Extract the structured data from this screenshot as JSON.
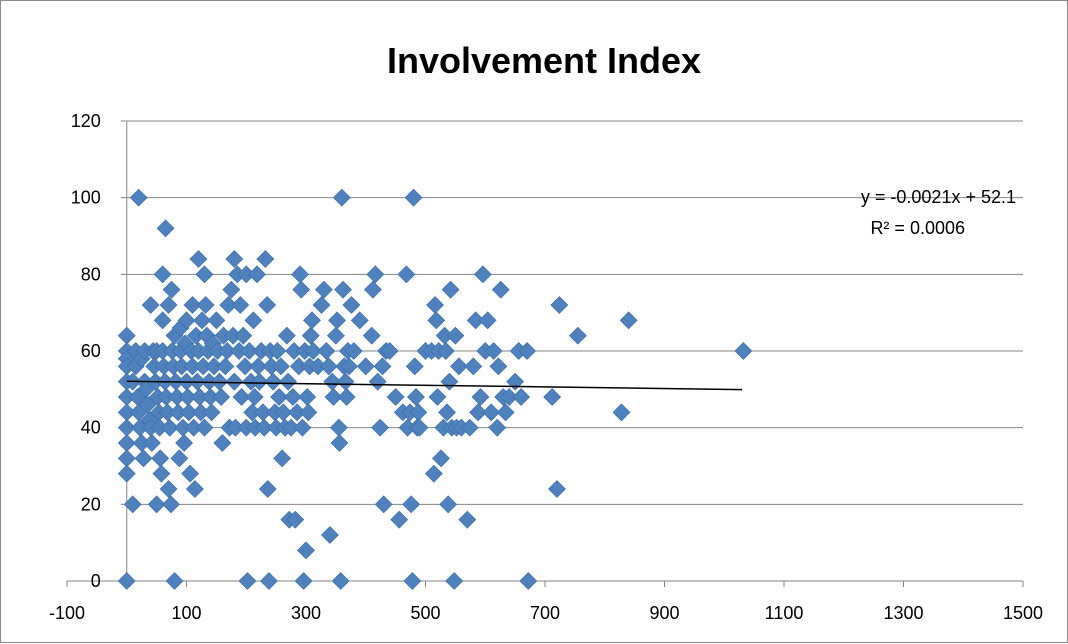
{
  "chart_data": {
    "type": "scatter",
    "title": "Involvement Index",
    "xlabel": "",
    "ylabel": "",
    "xlim": [
      -100,
      1500
    ],
    "ylim": [
      0,
      120
    ],
    "x_ticks": [
      -100,
      100,
      300,
      500,
      700,
      900,
      1100,
      1300,
      1500
    ],
    "y_ticks": [
      0,
      20,
      40,
      60,
      80,
      100,
      120
    ],
    "grid": "horizontal",
    "legend": "none",
    "marker": "diamond",
    "marker_color": "#4F81BD",
    "trendline": {
      "type": "linear",
      "slope": -0.0021,
      "intercept": 52.1,
      "x_range": [
        0,
        1030
      ],
      "equation": "y = -0.0021x + 52.1",
      "r_squared": "R² = 0.0006",
      "color": "#000000"
    },
    "points": [
      [
        0,
        64
      ],
      [
        0,
        60
      ],
      [
        0,
        58
      ],
      [
        0,
        56
      ],
      [
        0,
        52
      ],
      [
        0,
        48
      ],
      [
        0,
        44
      ],
      [
        0,
        40
      ],
      [
        0,
        36
      ],
      [
        0,
        32
      ],
      [
        0,
        28
      ],
      [
        0,
        0
      ],
      [
        10,
        52
      ],
      [
        10,
        20
      ],
      [
        15,
        60
      ],
      [
        15,
        56
      ],
      [
        18,
        48
      ],
      [
        20,
        44
      ],
      [
        20,
        100
      ],
      [
        22,
        40
      ],
      [
        25,
        58
      ],
      [
        25,
        36
      ],
      [
        28,
        32
      ],
      [
        30,
        60
      ],
      [
        30,
        52
      ],
      [
        32,
        50
      ],
      [
        35,
        46
      ],
      [
        38,
        42
      ],
      [
        40,
        72
      ],
      [
        40,
        40
      ],
      [
        42,
        36
      ],
      [
        44,
        60
      ],
      [
        46,
        56
      ],
      [
        48,
        52
      ],
      [
        50,
        20
      ],
      [
        50,
        60
      ],
      [
        52,
        48
      ],
      [
        54,
        44
      ],
      [
        55,
        40
      ],
      [
        56,
        32
      ],
      [
        58,
        28
      ],
      [
        60,
        80
      ],
      [
        60,
        68
      ],
      [
        60,
        60
      ],
      [
        62,
        56
      ],
      [
        64,
        52
      ],
      [
        65,
        92
      ],
      [
        66,
        48
      ],
      [
        68,
        44
      ],
      [
        70,
        72
      ],
      [
        70,
        24
      ],
      [
        72,
        40
      ],
      [
        74,
        20
      ],
      [
        75,
        76
      ],
      [
        76,
        60
      ],
      [
        78,
        56
      ],
      [
        80,
        0
      ],
      [
        80,
        64
      ],
      [
        82,
        52
      ],
      [
        84,
        48
      ],
      [
        86,
        44
      ],
      [
        88,
        32
      ],
      [
        90,
        60
      ],
      [
        90,
        66
      ],
      [
        92,
        56
      ],
      [
        94,
        40
      ],
      [
        96,
        36
      ],
      [
        98,
        62
      ],
      [
        100,
        52
      ],
      [
        100,
        68
      ],
      [
        102,
        48
      ],
      [
        104,
        44
      ],
      [
        106,
        28
      ],
      [
        108,
        60
      ],
      [
        110,
        72
      ],
      [
        110,
        56
      ],
      [
        112,
        40
      ],
      [
        114,
        24
      ],
      [
        116,
        64
      ],
      [
        118,
        52
      ],
      [
        120,
        84
      ],
      [
        120,
        60
      ],
      [
        122,
        48
      ],
      [
        124,
        44
      ],
      [
        126,
        68
      ],
      [
        128,
        56
      ],
      [
        130,
        80
      ],
      [
        130,
        40
      ],
      [
        132,
        72
      ],
      [
        134,
        64
      ],
      [
        136,
        60
      ],
      [
        138,
        52
      ],
      [
        140,
        48
      ],
      [
        142,
        44
      ],
      [
        144,
        62
      ],
      [
        146,
        56
      ],
      [
        150,
        68
      ],
      [
        152,
        60
      ],
      [
        155,
        52
      ],
      [
        158,
        48
      ],
      [
        160,
        36
      ],
      [
        162,
        64
      ],
      [
        165,
        56
      ],
      [
        168,
        60
      ],
      [
        170,
        72
      ],
      [
        172,
        40
      ],
      [
        175,
        76
      ],
      [
        178,
        64
      ],
      [
        180,
        84
      ],
      [
        180,
        52
      ],
      [
        182,
        40
      ],
      [
        185,
        80
      ],
      [
        188,
        60
      ],
      [
        190,
        72
      ],
      [
        192,
        48
      ],
      [
        195,
        64
      ],
      [
        198,
        56
      ],
      [
        200,
        80
      ],
      [
        200,
        40
      ],
      [
        202,
        0
      ],
      [
        205,
        60
      ],
      [
        208,
        52
      ],
      [
        210,
        44
      ],
      [
        212,
        68
      ],
      [
        214,
        48
      ],
      [
        215,
        40
      ],
      [
        218,
        80
      ],
      [
        220,
        56
      ],
      [
        222,
        52
      ],
      [
        225,
        60
      ],
      [
        228,
        44
      ],
      [
        230,
        40
      ],
      [
        232,
        84
      ],
      [
        235,
        72
      ],
      [
        236,
        24
      ],
      [
        238,
        0
      ],
      [
        240,
        60
      ],
      [
        242,
        56
      ],
      [
        245,
        52
      ],
      [
        248,
        44
      ],
      [
        250,
        40
      ],
      [
        252,
        60
      ],
      [
        255,
        48
      ],
      [
        258,
        56
      ],
      [
        260,
        32
      ],
      [
        262,
        44
      ],
      [
        265,
        40
      ],
      [
        268,
        64
      ],
      [
        270,
        52
      ],
      [
        272,
        16
      ],
      [
        275,
        40
      ],
      [
        278,
        48
      ],
      [
        280,
        60
      ],
      [
        282,
        16
      ],
      [
        285,
        44
      ],
      [
        288,
        56
      ],
      [
        290,
        80
      ],
      [
        292,
        76
      ],
      [
        294,
        40
      ],
      [
        296,
        0
      ],
      [
        298,
        60
      ],
      [
        300,
        8
      ],
      [
        302,
        48
      ],
      [
        304,
        44
      ],
      [
        306,
        56
      ],
      [
        308,
        64
      ],
      [
        310,
        68
      ],
      [
        312,
        60
      ],
      [
        320,
        56
      ],
      [
        326,
        72
      ],
      [
        330,
        76
      ],
      [
        334,
        60
      ],
      [
        338,
        56
      ],
      [
        340,
        12
      ],
      [
        344,
        52
      ],
      [
        346,
        48
      ],
      [
        350,
        64
      ],
      [
        352,
        68
      ],
      [
        355,
        40
      ],
      [
        356,
        36
      ],
      [
        358,
        0
      ],
      [
        360,
        100
      ],
      [
        362,
        76
      ],
      [
        364,
        56
      ],
      [
        366,
        52
      ],
      [
        368,
        48
      ],
      [
        370,
        60
      ],
      [
        372,
        56
      ],
      [
        376,
        72
      ],
      [
        380,
        60
      ],
      [
        390,
        68
      ],
      [
        400,
        56
      ],
      [
        410,
        64
      ],
      [
        412,
        76
      ],
      [
        416,
        80
      ],
      [
        420,
        52
      ],
      [
        424,
        40
      ],
      [
        428,
        56
      ],
      [
        430,
        20
      ],
      [
        434,
        60
      ],
      [
        440,
        60
      ],
      [
        450,
        48
      ],
      [
        456,
        16
      ],
      [
        462,
        44
      ],
      [
        468,
        80
      ],
      [
        470,
        40
      ],
      [
        474,
        44
      ],
      [
        476,
        20
      ],
      [
        478,
        0
      ],
      [
        480,
        100
      ],
      [
        482,
        56
      ],
      [
        484,
        48
      ],
      [
        486,
        40
      ],
      [
        488,
        44
      ],
      [
        490,
        40
      ],
      [
        500,
        60
      ],
      [
        510,
        60
      ],
      [
        514,
        28
      ],
      [
        516,
        72
      ],
      [
        518,
        68
      ],
      [
        520,
        48
      ],
      [
        522,
        60
      ],
      [
        526,
        32
      ],
      [
        530,
        40
      ],
      [
        532,
        64
      ],
      [
        534,
        60
      ],
      [
        536,
        44
      ],
      [
        538,
        20
      ],
      [
        540,
        52
      ],
      [
        542,
        76
      ],
      [
        544,
        40
      ],
      [
        548,
        0
      ],
      [
        550,
        64
      ],
      [
        552,
        40
      ],
      [
        556,
        56
      ],
      [
        560,
        40
      ],
      [
        570,
        16
      ],
      [
        574,
        40
      ],
      [
        580,
        56
      ],
      [
        584,
        68
      ],
      [
        588,
        44
      ],
      [
        592,
        48
      ],
      [
        596,
        80
      ],
      [
        600,
        60
      ],
      [
        604,
        68
      ],
      [
        610,
        44
      ],
      [
        614,
        60
      ],
      [
        620,
        40
      ],
      [
        622,
        56
      ],
      [
        626,
        76
      ],
      [
        630,
        48
      ],
      [
        634,
        44
      ],
      [
        640,
        48
      ],
      [
        650,
        52
      ],
      [
        656,
        60
      ],
      [
        660,
        48
      ],
      [
        670,
        60
      ],
      [
        672,
        0
      ],
      [
        712,
        48
      ],
      [
        720,
        24
      ],
      [
        724,
        72
      ],
      [
        755,
        64
      ],
      [
        828,
        44
      ],
      [
        840,
        68
      ],
      [
        1032,
        60
      ]
    ]
  }
}
